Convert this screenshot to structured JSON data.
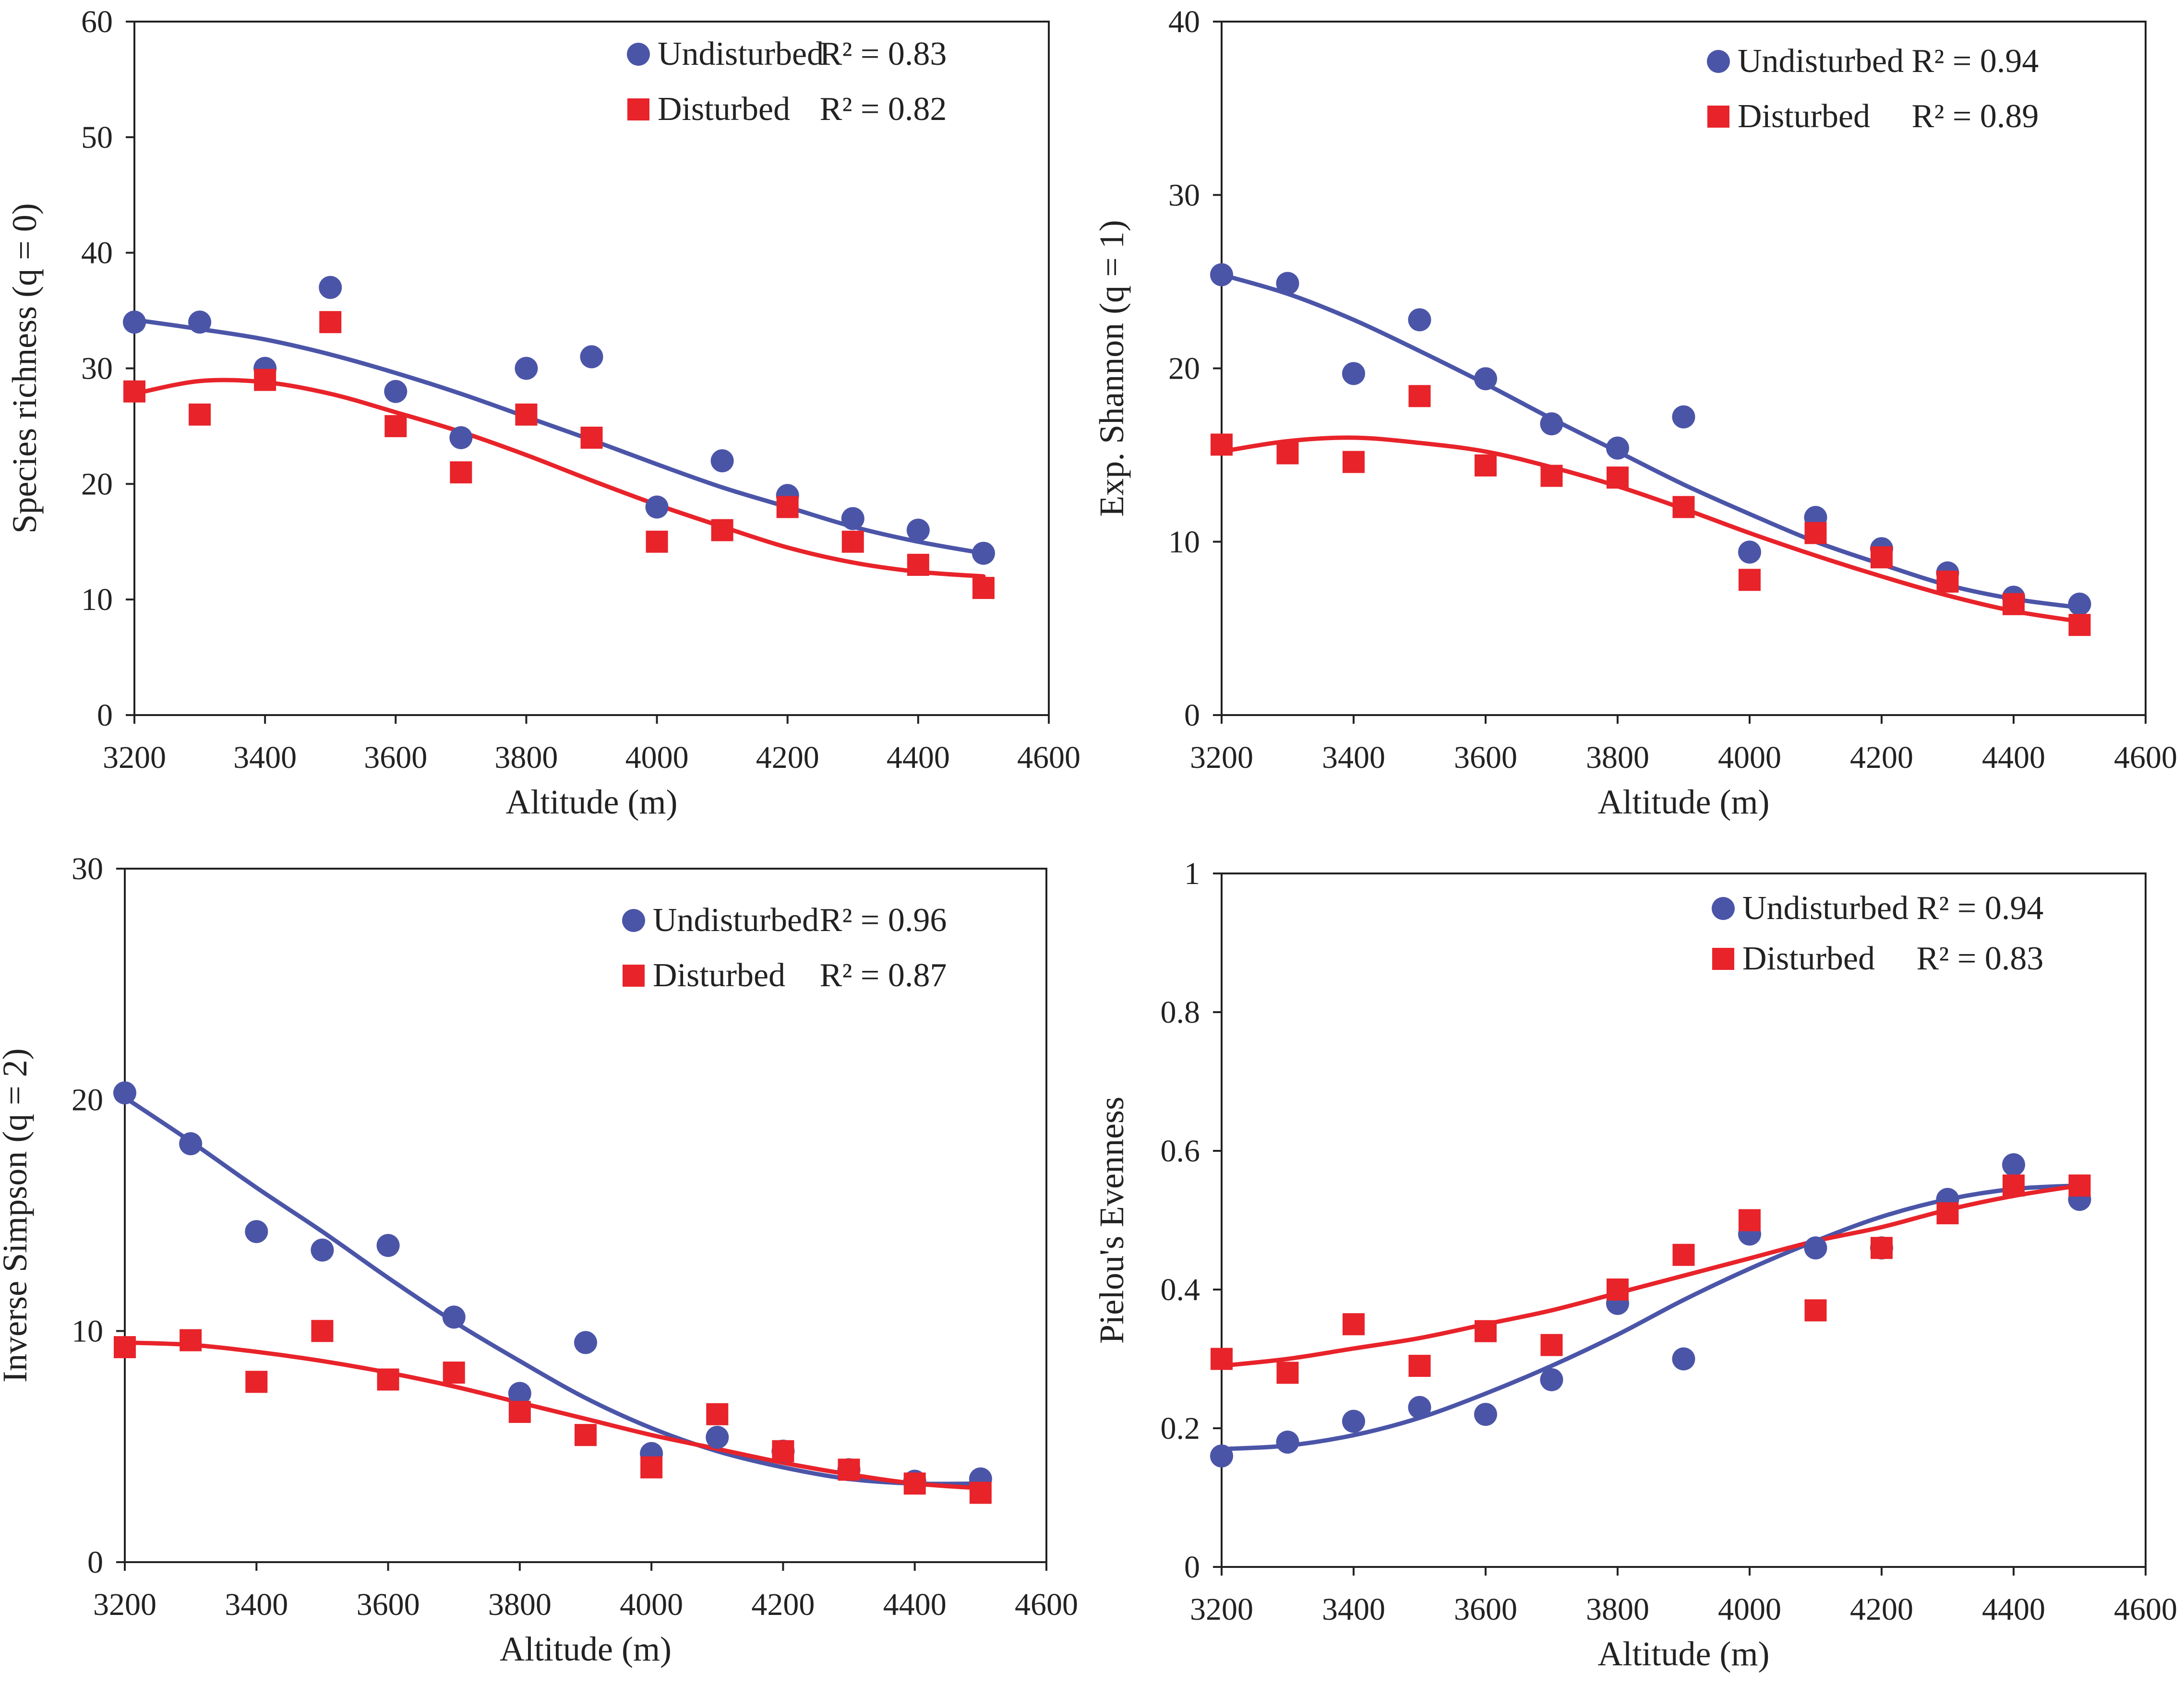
{
  "colors": {
    "undisturbed": "#4b55a8",
    "disturbed": "#e8232a",
    "axis": "#222222"
  },
  "chart_data": [
    {
      "type": "scatter",
      "xlabel": "Altitude (m)",
      "ylabel": "Species richness (q = 0)",
      "xlim": [
        3200,
        4600
      ],
      "ylim": [
        0,
        60
      ],
      "xticks": [
        "3200",
        "3400",
        "3600",
        "3800",
        "4000",
        "4200",
        "4400",
        "4600"
      ],
      "yticks": [
        "0",
        "10",
        "20",
        "30",
        "40",
        "50",
        "60"
      ],
      "grid": false,
      "legend_position": "top-right",
      "x": [
        3200,
        3300,
        3400,
        3500,
        3600,
        3700,
        3800,
        3900,
        4000,
        4100,
        4200,
        4300,
        4400,
        4500
      ],
      "series": [
        {
          "name": "Undisturbed",
          "r2": "R² = 0.83",
          "marker": "circle",
          "values": [
            34,
            34,
            30,
            37,
            28,
            24,
            30,
            31,
            18,
            22,
            19,
            17,
            16,
            14
          ],
          "fit": [
            34.2,
            33.4,
            32.5,
            31.2,
            29.6,
            27.8,
            25.8,
            23.8,
            21.7,
            19.7,
            18.0,
            16.3,
            15.0,
            14.0
          ]
        },
        {
          "name": "Disturbed",
          "r2": "R² = 0.82",
          "marker": "square",
          "values": [
            28,
            26,
            29,
            34,
            25,
            21,
            26,
            24,
            15,
            16,
            18,
            15,
            13,
            11
          ],
          "fit": [
            27.8,
            28.9,
            28.8,
            27.8,
            26.2,
            24.5,
            22.5,
            20.3,
            18.2,
            16.3,
            14.5,
            13.2,
            12.4,
            12.0
          ]
        }
      ]
    },
    {
      "type": "scatter",
      "xlabel": "Altitude (m)",
      "ylabel": "Exp. Shannon (q = 1)",
      "xlim": [
        3200,
        4600
      ],
      "ylim": [
        0,
        40
      ],
      "xticks": [
        "3200",
        "3400",
        "3600",
        "3800",
        "4000",
        "4200",
        "4400",
        "4600"
      ],
      "yticks": [
        "0",
        "10",
        "20",
        "30",
        "40"
      ],
      "grid": false,
      "legend_position": "top-right",
      "x": [
        3200,
        3300,
        3400,
        3500,
        3600,
        3700,
        3800,
        3900,
        4000,
        4100,
        4200,
        4300,
        4400,
        4500
      ],
      "series": [
        {
          "name": "Undisturbed",
          "r2": "R² = 0.94",
          "marker": "circle",
          "values": [
            25.4,
            24.9,
            19.7,
            22.8,
            19.4,
            16.8,
            15.4,
            17.2,
            9.4,
            11.4,
            9.6,
            8.2,
            6.8,
            6.4
          ],
          "fit": [
            25.4,
            24.3,
            22.8,
            21.0,
            19.1,
            17.1,
            15.2,
            13.3,
            11.6,
            10.0,
            8.7,
            7.5,
            6.7,
            6.2
          ]
        },
        {
          "name": "Disturbed",
          "r2": "R² = 0.89",
          "marker": "square",
          "values": [
            15.6,
            15.1,
            14.6,
            18.4,
            14.4,
            13.8,
            13.7,
            12.0,
            7.8,
            10.5,
            9.1,
            7.7,
            6.4,
            5.2
          ],
          "fit": [
            15.2,
            15.8,
            16.0,
            15.7,
            15.2,
            14.3,
            13.2,
            11.9,
            10.5,
            9.2,
            8.0,
            6.9,
            6.0,
            5.4
          ]
        }
      ]
    },
    {
      "type": "scatter",
      "xlabel": "Altitude (m)",
      "ylabel": "Inverse Simpson (q = 2)",
      "xlim": [
        3200,
        4600
      ],
      "ylim": [
        0,
        30
      ],
      "xticks": [
        "3200",
        "3400",
        "3600",
        "3800",
        "4000",
        "4200",
        "4400",
        "4600"
      ],
      "yticks": [
        "0",
        "10",
        "20",
        "30"
      ],
      "grid": false,
      "legend_position": "top-right",
      "x": [
        3200,
        3300,
        3400,
        3500,
        3600,
        3700,
        3800,
        3900,
        4000,
        4100,
        4200,
        4300,
        4400,
        4500
      ],
      "series": [
        {
          "name": "Undisturbed",
          "r2": "R² = 0.96",
          "marker": "circle",
          "values": [
            20.3,
            18.1,
            14.3,
            13.5,
            13.7,
            10.6,
            7.3,
            9.5,
            4.7,
            5.4,
            4.8,
            4.0,
            3.5,
            3.6
          ],
          "fit": [
            20.1,
            18.2,
            16.2,
            14.3,
            12.3,
            10.4,
            8.7,
            7.1,
            5.8,
            4.8,
            4.1,
            3.6,
            3.4,
            3.4
          ]
        },
        {
          "name": "Disturbed",
          "r2": "R² = 0.87",
          "marker": "square",
          "values": [
            9.3,
            9.6,
            7.8,
            10.0,
            7.9,
            8.2,
            6.5,
            5.5,
            4.1,
            6.4,
            4.8,
            4.0,
            3.4,
            3.0
          ],
          "fit": [
            9.5,
            9.4,
            9.1,
            8.7,
            8.2,
            7.6,
            6.9,
            6.2,
            5.5,
            4.9,
            4.3,
            3.8,
            3.4,
            3.2
          ]
        }
      ]
    },
    {
      "type": "scatter",
      "xlabel": "Altitude (m)",
      "ylabel": "Pielou's Evenness",
      "xlim": [
        3200,
        4600
      ],
      "ylim": [
        0,
        1
      ],
      "xticks": [
        "3200",
        "3400",
        "3600",
        "3800",
        "4000",
        "4200",
        "4400",
        "4600"
      ],
      "yticks": [
        "0",
        "0.2",
        "0.4",
        "0.6",
        "0.8",
        "1"
      ],
      "grid": false,
      "legend_position": "top-right",
      "x": [
        3200,
        3300,
        3400,
        3500,
        3600,
        3700,
        3800,
        3900,
        4000,
        4100,
        4200,
        4300,
        4400,
        4500
      ],
      "series": [
        {
          "name": "Undisturbed",
          "r2": "R² = 0.94",
          "marker": "circle",
          "values": [
            0.16,
            0.18,
            0.21,
            0.23,
            0.22,
            0.27,
            0.38,
            0.3,
            0.48,
            0.46,
            0.46,
            0.53,
            0.58,
            0.53
          ],
          "fit": [
            0.17,
            0.175,
            0.19,
            0.215,
            0.25,
            0.29,
            0.335,
            0.385,
            0.43,
            0.47,
            0.505,
            0.53,
            0.545,
            0.55
          ]
        },
        {
          "name": "Disturbed",
          "r2": "R² = 0.83",
          "marker": "square",
          "values": [
            0.3,
            0.28,
            0.35,
            0.29,
            0.34,
            0.32,
            0.4,
            0.45,
            0.5,
            0.37,
            0.46,
            0.51,
            0.55,
            0.55
          ],
          "fit": [
            0.29,
            0.3,
            0.315,
            0.33,
            0.35,
            0.37,
            0.395,
            0.42,
            0.445,
            0.47,
            0.49,
            0.515,
            0.535,
            0.55
          ]
        }
      ]
    }
  ]
}
